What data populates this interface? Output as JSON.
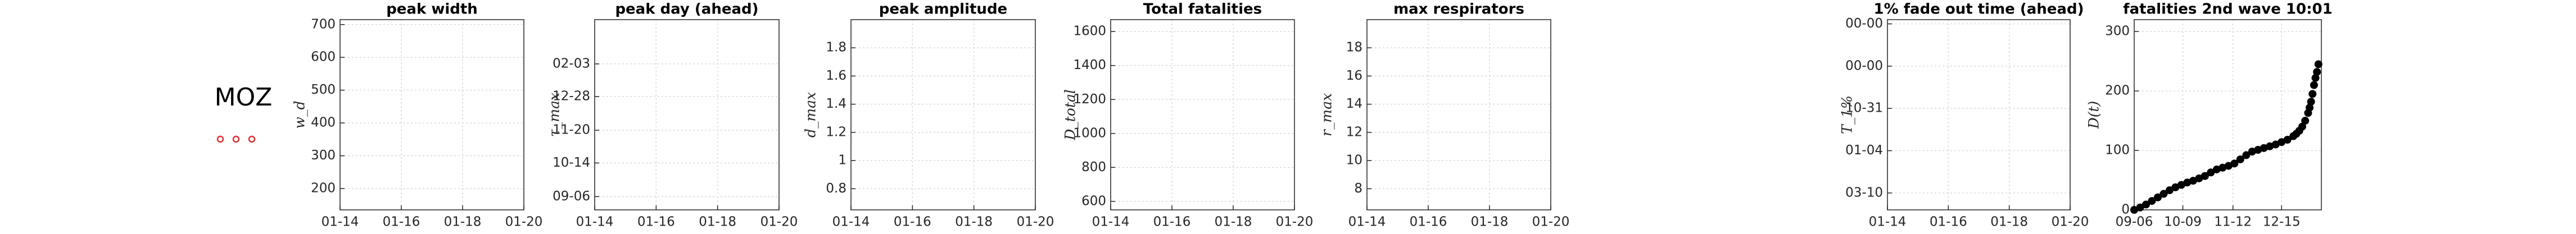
{
  "label": "MOZ",
  "chart_data": [
    {
      "type": "line",
      "title": "peak width",
      "ylabel": "w_d",
      "xlim": [
        14,
        20
      ],
      "xticks": [
        {
          "value": 14,
          "label": "01-14"
        },
        {
          "value": 16,
          "label": "01-16"
        },
        {
          "value": 18,
          "label": "01-18"
        },
        {
          "value": 20,
          "label": "01-20"
        }
      ],
      "ylim": [
        135,
        715
      ],
      "yticks": [
        200,
        300,
        400,
        500,
        600,
        700
      ],
      "grid": true,
      "series": []
    },
    {
      "type": "line",
      "title": "peak day (ahead)",
      "ylabel": "τ_max",
      "xlim": [
        14,
        20
      ],
      "xticks": [
        {
          "value": 14,
          "label": "01-14"
        },
        {
          "value": 16,
          "label": "01-16"
        },
        {
          "value": 18,
          "label": "01-18"
        },
        {
          "value": 20,
          "label": "01-20"
        }
      ],
      "ylim": [
        -15,
        200
      ],
      "yticks": [
        {
          "value": 0,
          "label": "09-06"
        },
        {
          "value": 38,
          "label": "10-14"
        },
        {
          "value": 75,
          "label": "11-20"
        },
        {
          "value": 113,
          "label": "12-28"
        },
        {
          "value": 150,
          "label": "02-03"
        }
      ],
      "grid": true,
      "series": []
    },
    {
      "type": "line",
      "title": "peak amplitude",
      "ylabel": "d_max",
      "xlim": [
        14,
        20
      ],
      "xticks": [
        {
          "value": 14,
          "label": "01-14"
        },
        {
          "value": 16,
          "label": "01-16"
        },
        {
          "value": 18,
          "label": "01-18"
        },
        {
          "value": 20,
          "label": "01-20"
        }
      ],
      "ylim": [
        0.65,
        2.0
      ],
      "yticks": [
        0.8,
        1,
        1.2,
        1.4,
        1.6,
        1.8
      ],
      "grid": true,
      "series": []
    },
    {
      "type": "line",
      "title": "Total fatalities",
      "ylabel": "D_total",
      "xlim": [
        14,
        20
      ],
      "xticks": [
        {
          "value": 14,
          "label": "01-14"
        },
        {
          "value": 16,
          "label": "01-16"
        },
        {
          "value": 18,
          "label": "01-18"
        },
        {
          "value": 20,
          "label": "01-20"
        }
      ],
      "ylim": [
        550,
        1670
      ],
      "yticks": [
        600,
        800,
        1000,
        1200,
        1400,
        1600
      ],
      "grid": true,
      "series": []
    },
    {
      "type": "line",
      "title": "max respirators",
      "ylabel": "r_max",
      "xlim": [
        14,
        20
      ],
      "xticks": [
        {
          "value": 14,
          "label": "01-14"
        },
        {
          "value": 16,
          "label": "01-16"
        },
        {
          "value": 18,
          "label": "01-18"
        },
        {
          "value": 20,
          "label": "01-20"
        }
      ],
      "ylim": [
        6.5,
        20
      ],
      "yticks": [
        8,
        10,
        12,
        14,
        16,
        18
      ],
      "grid": true,
      "series": []
    },
    {
      "type": "line",
      "title": "1% fade out time (ahead)",
      "ylabel": "T_1%",
      "xlim": [
        14,
        20
      ],
      "xticks": [
        {
          "value": 14,
          "label": "01-14"
        },
        {
          "value": 16,
          "label": "01-16"
        },
        {
          "value": 18,
          "label": "01-18"
        },
        {
          "value": 20,
          "label": "01-20"
        }
      ],
      "ylim": [
        -0.4,
        4.1
      ],
      "yticks": [
        {
          "value": 0,
          "label": "03-10"
        },
        {
          "value": 1,
          "label": "01-04"
        },
        {
          "value": 2,
          "label": "10-31"
        },
        {
          "value": 3,
          "label": "00-00"
        },
        {
          "value": 4,
          "label": "00-00"
        }
      ],
      "grid": true,
      "series": []
    },
    {
      "type": "scatter",
      "title": "fatalities 2nd wave 10:01",
      "ylabel": "D(t)",
      "xlim": [
        0,
        127
      ],
      "xticks": [
        {
          "value": 0,
          "label": "09-06"
        },
        {
          "value": 33,
          "label": "10-09"
        },
        {
          "value": 67,
          "label": "11-12"
        },
        {
          "value": 100,
          "label": "12-15"
        }
      ],
      "ylim": [
        0,
        320
      ],
      "yticks": [
        0,
        100,
        200,
        300
      ],
      "grid": true,
      "series": [
        {
          "color": "#000000",
          "x": [
            0,
            4,
            8,
            12,
            16,
            20,
            24,
            28,
            32,
            36,
            40,
            44,
            48,
            52,
            56,
            60,
            64,
            68,
            72,
            76,
            80,
            84,
            88,
            92,
            96,
            100,
            104,
            108,
            110,
            112,
            114,
            116,
            118,
            119,
            120,
            121,
            122,
            123,
            124,
            125
          ],
          "y": [
            0,
            4,
            9,
            15,
            21,
            27,
            33,
            38,
            42,
            46,
            49,
            53,
            57,
            63,
            68,
            71,
            74,
            78,
            85,
            92,
            98,
            101,
            104,
            107,
            110,
            114,
            118,
            124,
            128,
            133,
            140,
            150,
            163,
            172,
            182,
            195,
            210,
            222,
            232,
            245
          ]
        }
      ]
    }
  ]
}
